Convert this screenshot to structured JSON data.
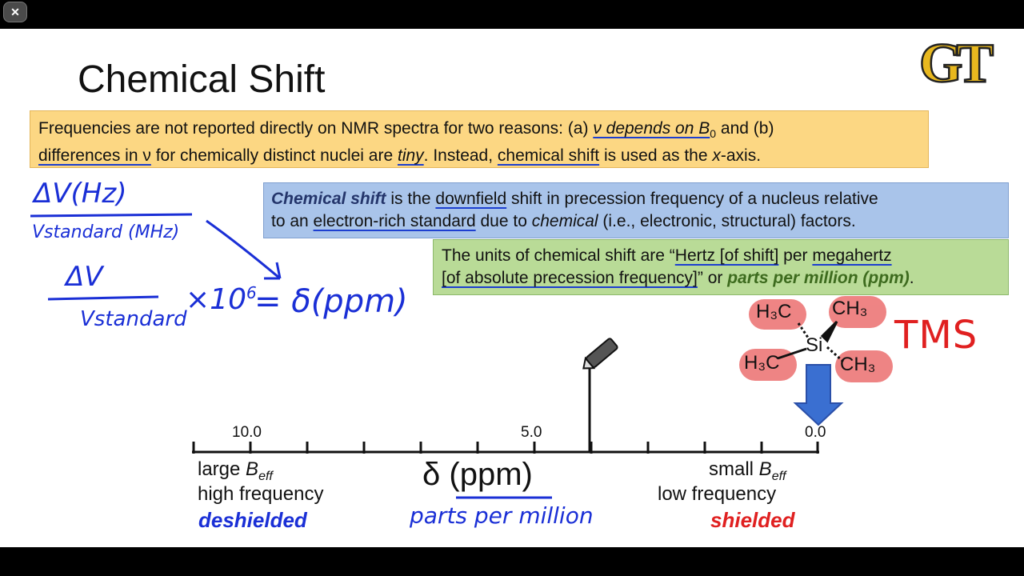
{
  "window": {
    "close_label": "✕"
  },
  "slide": {
    "title": "Chemical Shift",
    "logo_text": "GT"
  },
  "box_orange": {
    "t1": "Frequencies are not reported directly on NMR spectra for two reasons: (a) ",
    "t2": "ν depends on B",
    "t2_sub": "0",
    "t3": " and (b)",
    "t4": "differences in ν",
    "t5": " for chemically distinct nuclei are ",
    "t6": "tiny",
    "t7": ". Instead, ",
    "t8": "chemical shift",
    "t9": " is used as the ",
    "t10": "x",
    "t11": "-axis."
  },
  "box_blue": {
    "t1": "Chemical shift",
    "t2": " is the ",
    "t3": "downfield",
    "t4": " shift in precession frequency of a nucleus relative",
    "t5": "to an ",
    "t6": "electron-rich standard",
    "t7": " due to ",
    "t8": "chemical",
    "t9": " (i.e., electronic, structural) factors."
  },
  "box_green": {
    "t1": "The units of chemical shift are “",
    "t2": "Hertz [of shift]",
    "t3": " per ",
    "t4": "megahertz",
    "t5": "[of absolute precession frequency]",
    "t6": "” or ",
    "t7": "parts per million (ppm)",
    "t8": "."
  },
  "tms": {
    "si": "Si",
    "h3c_top": "H₃C",
    "ch3_top": "CH₃",
    "h3c_bottom": "H₃C",
    "ch3_bottom": "CH₃",
    "label": "TMS"
  },
  "axis": {
    "tick_10": "10.0",
    "tick_5": "5.0",
    "tick_0": "0.0",
    "delta_label": "δ (ppm)",
    "left_line1_a": "large ",
    "left_line1_b": "B",
    "left_line1_sub": "eff",
    "left_line2": "high frequency",
    "left_line3": "deshielded",
    "right_line1_a": "small ",
    "right_line1_b": "B",
    "right_line1_sub": "eff",
    "right_line2": "low frequency",
    "right_line3": "shielded"
  },
  "handwriting": {
    "delta_nu_hz": "ΔV(Hz)",
    "nu_standard_mhz": "Vstandard (MHz)",
    "delta_nu": "ΔV",
    "nu_standard": "Vstandard",
    "times": "×10",
    "exp": "6",
    "equals_delta": "= δ(ppm)",
    "parts_per_million": "parts per million"
  },
  "colors": {
    "orange_box": "#fcd783",
    "blue_box": "#a9c4ea",
    "green_box": "#b9db97",
    "ink_blue": "#1a2fd6",
    "ink_red": "#e02020",
    "logo_gold": "#e8b81f"
  }
}
